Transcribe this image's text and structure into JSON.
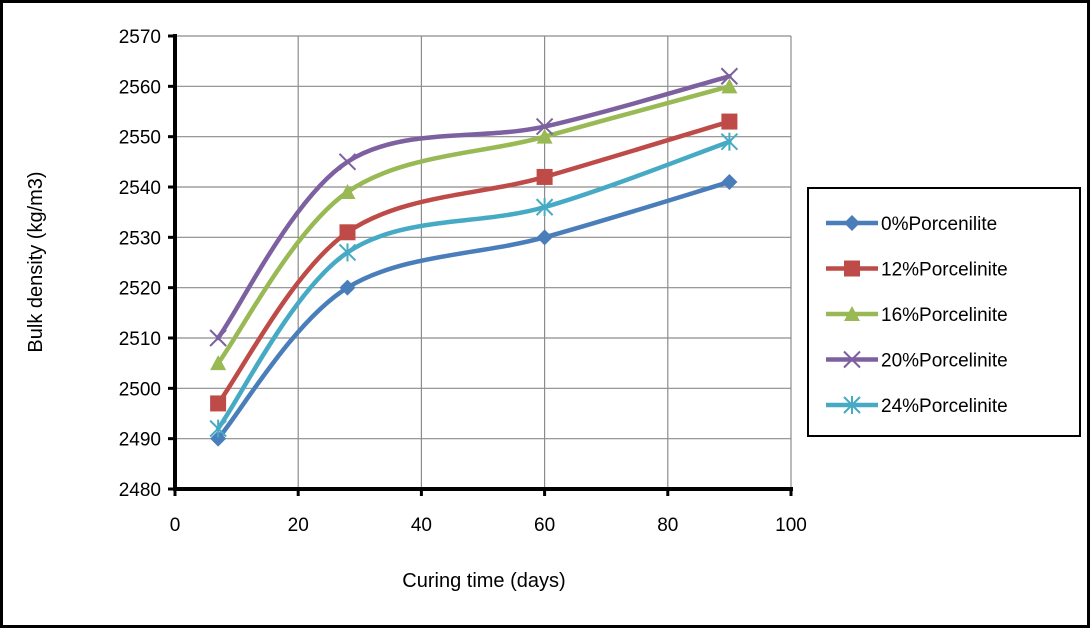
{
  "chart_data": {
    "type": "line",
    "xlabel": "Curing time (days)",
    "ylabel": "Bulk density (kg/m3)",
    "xlim": [
      0,
      100
    ],
    "ylim": [
      2480,
      2570
    ],
    "xticks": [
      0,
      20,
      40,
      60,
      80,
      100
    ],
    "yticks": [
      2480,
      2490,
      2500,
      2510,
      2520,
      2530,
      2540,
      2550,
      2560,
      2570
    ],
    "grid": true,
    "legend_position": "right",
    "x": [
      7,
      28,
      60,
      90
    ],
    "series": [
      {
        "name": "0%Porcenilite",
        "values": [
          2490,
          2520,
          2530,
          2541
        ],
        "color": "#4A7EBB",
        "marker": "diamond"
      },
      {
        "name": "12%Porcelinite",
        "values": [
          2497,
          2531,
          2542,
          2553
        ],
        "color": "#BE4B48",
        "marker": "square"
      },
      {
        "name": "16%Porcelinite",
        "values": [
          2505,
          2539,
          2550,
          2560
        ],
        "color": "#98B954",
        "marker": "triangle"
      },
      {
        "name": "20%Porcelinite",
        "values": [
          2510,
          2545,
          2552,
          2562
        ],
        "color": "#7D60A0",
        "marker": "x"
      },
      {
        "name": "24%Porcelinite",
        "values": [
          2492,
          2527,
          2536,
          2549
        ],
        "color": "#46AAC5",
        "marker": "star"
      }
    ]
  }
}
